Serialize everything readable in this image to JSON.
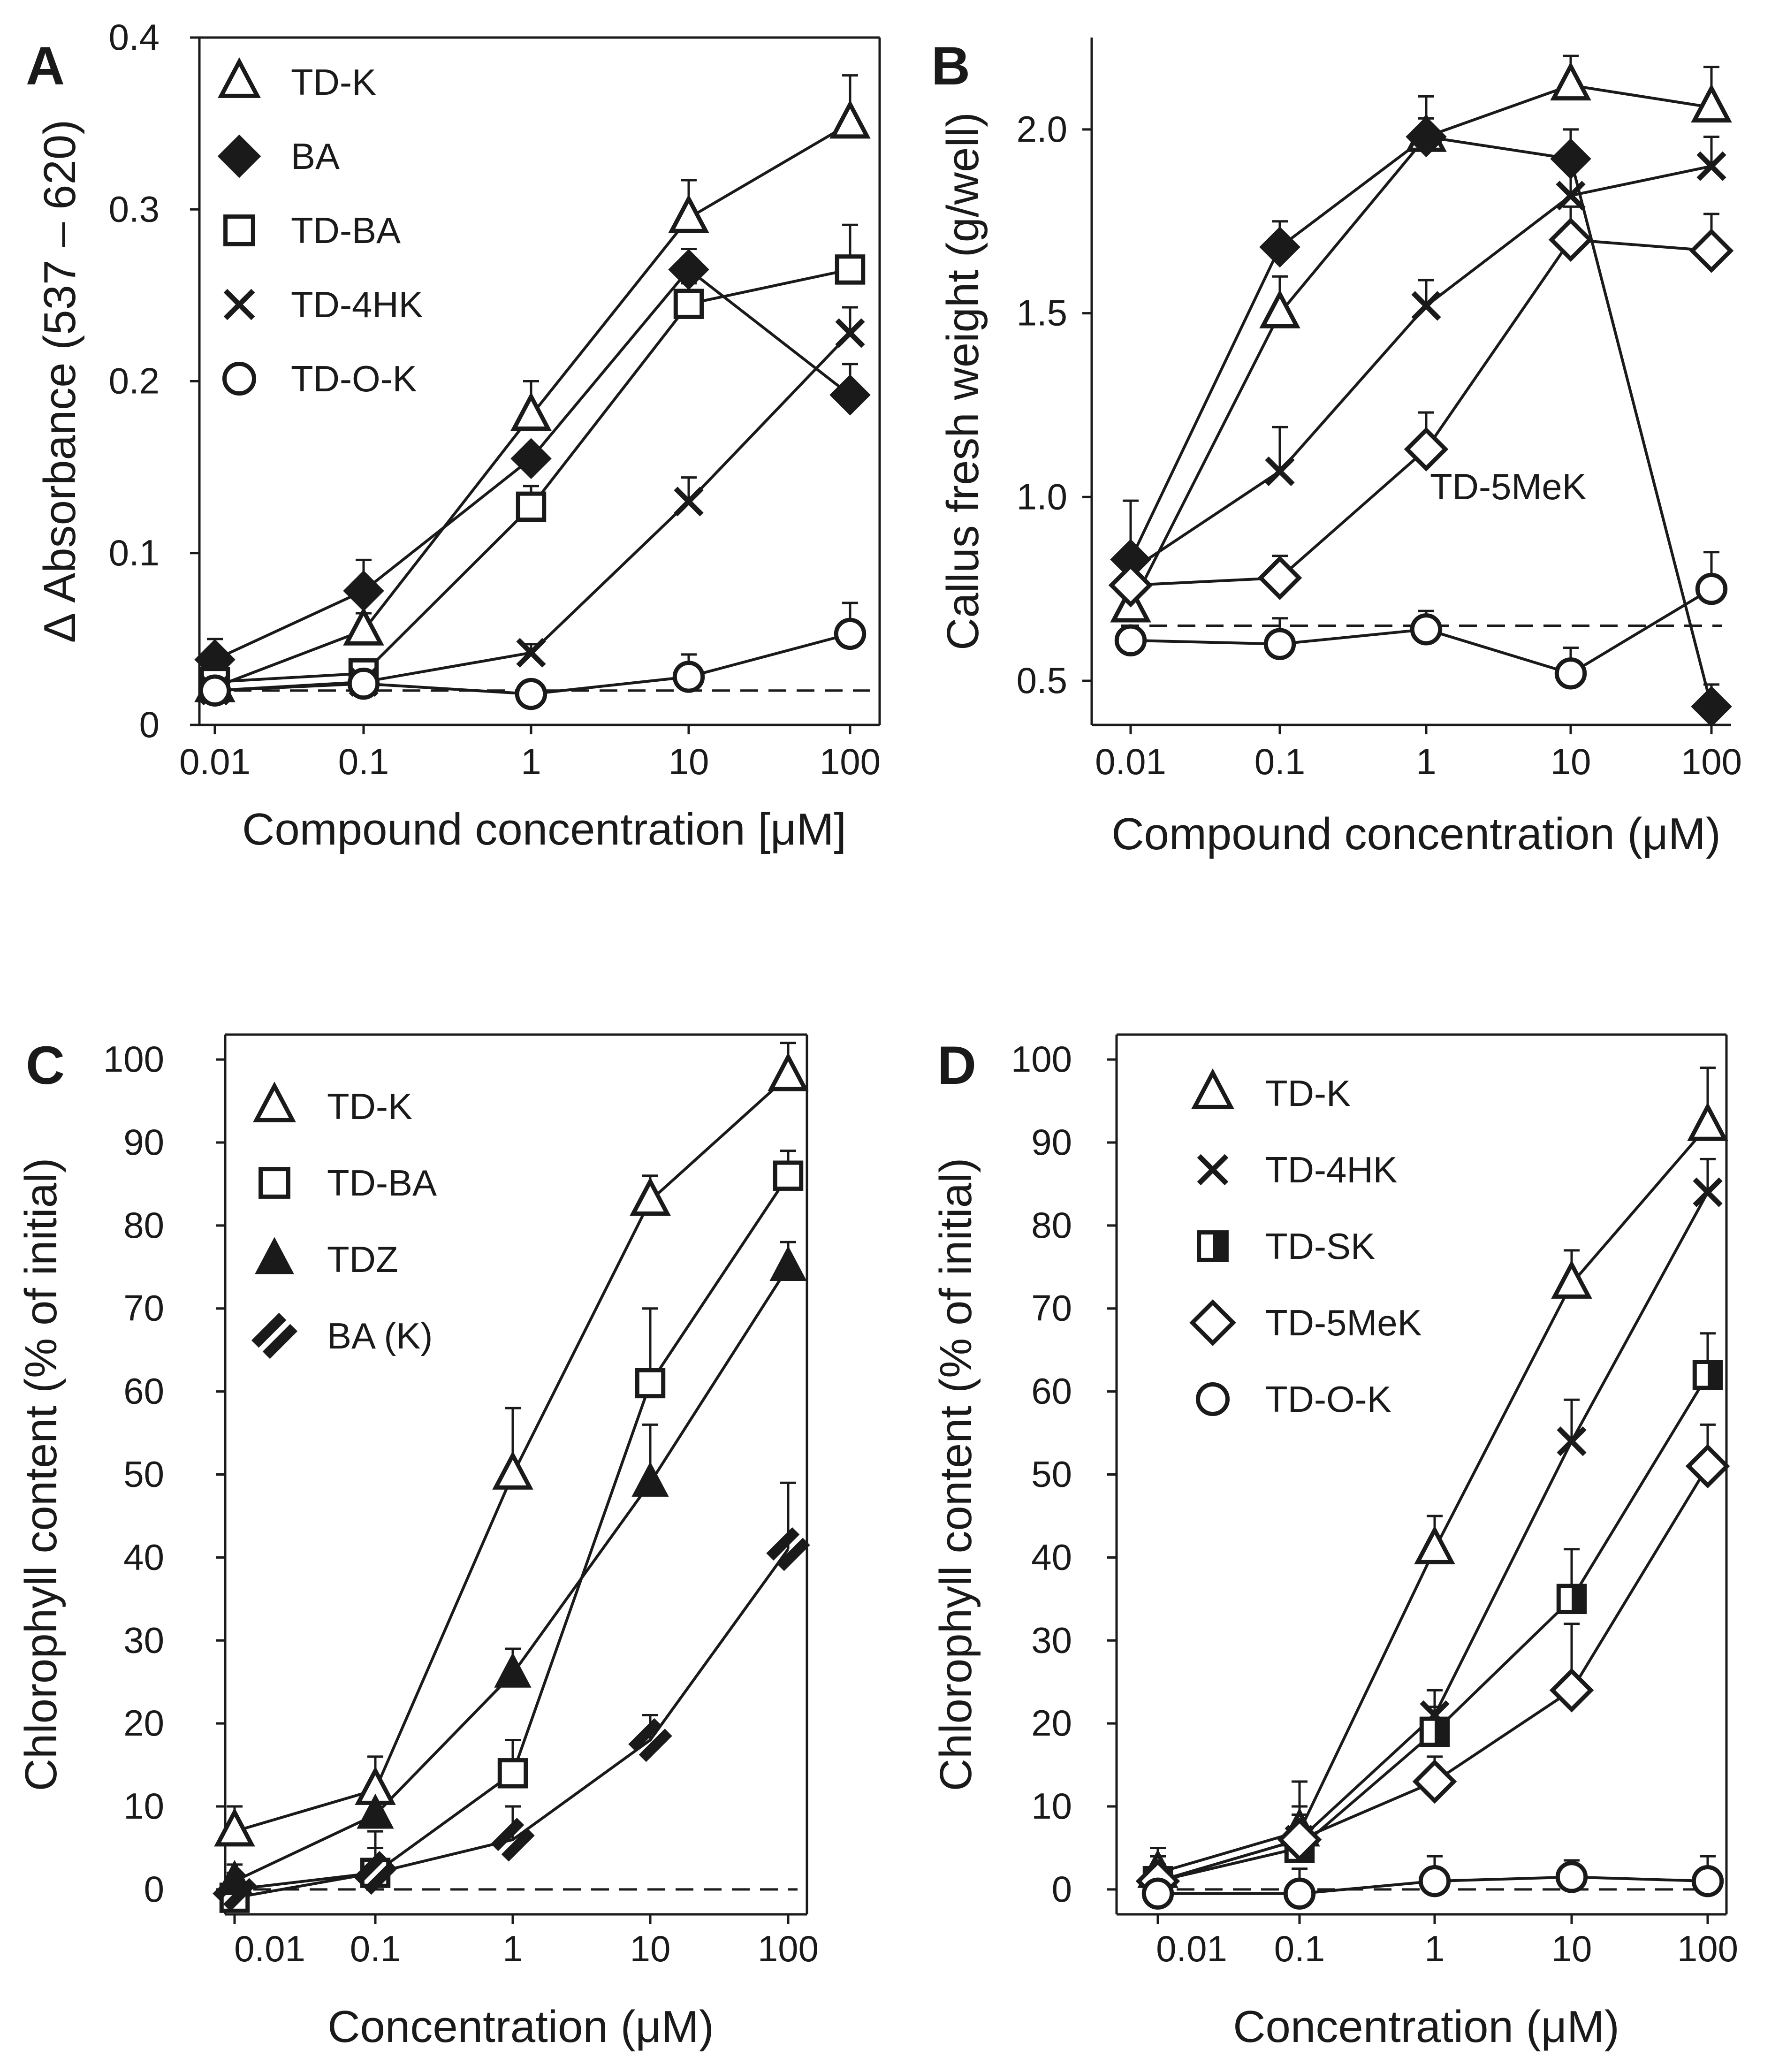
{
  "chart_data": [
    {
      "panel": "A",
      "type": "line",
      "xscale": "log",
      "x": [
        0.01,
        0.1,
        1,
        10,
        100
      ],
      "x_tick_labels": [
        "0.01",
        "0.1",
        "1",
        "10",
        "100"
      ],
      "xlabel": "Compound concentration [μM]",
      "ylabel": "Δ Absorbance (537 – 620)",
      "ylim": [
        0,
        0.4
      ],
      "y_ticks": [
        0,
        0.1,
        0.2,
        0.3,
        0.4
      ],
      "y_tick_labels": [
        "0",
        "0.1",
        "0.2",
        "0.3",
        "0.4"
      ],
      "baseline": 0.02,
      "legend_position": "top-left",
      "series": [
        {
          "name": "TD-K",
          "marker": "triangle-open",
          "values": [
            0.022,
            0.055,
            0.18,
            0.295,
            0.35
          ],
          "error": [
            0.008,
            0.01,
            0.02,
            0.022,
            0.028
          ]
        },
        {
          "name": "BA",
          "marker": "diamond-filled",
          "values": [
            0.038,
            0.078,
            0.155,
            0.265,
            0.192
          ],
          "error": [
            0.012,
            0.018,
            0.006,
            0.012,
            0.018
          ]
        },
        {
          "name": "TD-BA",
          "marker": "square-open",
          "values": [
            0.025,
            0.03,
            0.127,
            0.245,
            0.265
          ],
          "error": [
            0.005,
            0.008,
            0.012,
            0.012,
            0.026
          ]
        },
        {
          "name": "TD-4HK",
          "marker": "x",
          "values": [
            0.02,
            0.025,
            0.042,
            0.13,
            0.228
          ],
          "error": [
            0.004,
            0.004,
            0.005,
            0.014,
            0.015
          ]
        },
        {
          "name": "TD-O-K",
          "marker": "circle-open",
          "values": [
            0.02,
            0.024,
            0.018,
            0.028,
            0.053
          ],
          "error": [
            0.004,
            0.004,
            0.006,
            0.013,
            0.018
          ]
        }
      ]
    },
    {
      "panel": "B",
      "type": "line",
      "xscale": "log",
      "x": [
        0.01,
        0.1,
        1,
        10,
        100
      ],
      "x_tick_labels": [
        "0.01",
        "0.1",
        "1",
        "10",
        "100"
      ],
      "xlabel": "Compound concentration (μM)",
      "ylabel": "Callus fresh weight (g/well)",
      "ylim": [
        0.38,
        2.25
      ],
      "y_ticks": [
        0.5,
        1.0,
        1.5,
        2.0
      ],
      "y_tick_labels": [
        "0.5",
        "1.0",
        "1.5",
        "2.0"
      ],
      "baseline": 0.65,
      "annotation": "TD-5MeK",
      "series": [
        {
          "name": "TD-K",
          "marker": "triangle-open",
          "values": [
            0.7,
            1.5,
            1.98,
            2.12,
            2.06
          ],
          "error": [
            0.05,
            0.1,
            0.05,
            0.08,
            0.11
          ]
        },
        {
          "name": "BA",
          "marker": "diamond-filled",
          "values": [
            0.83,
            1.68,
            1.98,
            1.92,
            0.43
          ],
          "error": [
            0.16,
            0.07,
            0.11,
            0.08,
            0.06
          ]
        },
        {
          "name": "TD-4HK",
          "marker": "x",
          "values": [
            0.8,
            1.07,
            1.52,
            1.82,
            1.9
          ],
          "error": [
            0.05,
            0.12,
            0.07,
            0.08,
            0.08
          ]
        },
        {
          "name": "TD-5MeK",
          "marker": "diamond-open",
          "values": [
            0.76,
            0.78,
            1.13,
            1.7,
            1.67
          ],
          "error": [
            0.02,
            0.06,
            0.1,
            0.09,
            0.1
          ]
        },
        {
          "name": "TD-O-K",
          "marker": "circle-open",
          "values": [
            0.61,
            0.6,
            0.64,
            0.52,
            0.75
          ],
          "error": [
            0.02,
            0.07,
            0.05,
            0.07,
            0.1
          ]
        }
      ]
    },
    {
      "panel": "C",
      "type": "line",
      "xscale": "log",
      "x": [
        0.01,
        0.1,
        1,
        10,
        100
      ],
      "x_tick_labels": [
        "0.01",
        "0.1",
        "1",
        "10",
        "100"
      ],
      "xlabel": "Concentration (μM)",
      "ylabel": "Chlorophyll content (% of initial)",
      "ylim": [
        -3,
        103
      ],
      "y_ticks": [
        0,
        10,
        20,
        30,
        40,
        50,
        60,
        70,
        80,
        90,
        100
      ],
      "y_tick_labels": [
        "0",
        "10",
        "20",
        "30",
        "40",
        "50",
        "60",
        "70",
        "80",
        "90",
        "100"
      ],
      "baseline": 0,
      "legend_position": "top-left",
      "series": [
        {
          "name": "TD-K",
          "marker": "triangle-open",
          "values": [
            7,
            12,
            50,
            83,
            98
          ],
          "error": [
            3,
            4,
            8,
            3,
            4
          ]
        },
        {
          "name": "TD-BA",
          "marker": "square-open",
          "values": [
            -1,
            2,
            14,
            61,
            86
          ],
          "error": [
            3,
            3,
            4,
            9,
            3
          ]
        },
        {
          "name": "TDZ",
          "marker": "triangle-filled",
          "values": [
            1,
            9,
            26,
            49,
            75
          ],
          "error": [
            2,
            3,
            3,
            7,
            3
          ]
        },
        {
          "name": "BA (K)",
          "marker": "double-bar",
          "values": [
            0,
            2,
            6,
            18,
            41
          ],
          "error": [
            2,
            5,
            4,
            3,
            8
          ]
        }
      ]
    },
    {
      "panel": "D",
      "type": "line",
      "xscale": "log",
      "x": [
        0.01,
        0.1,
        1,
        10,
        100
      ],
      "x_tick_labels": [
        "0.01",
        "0.1",
        "1",
        "10",
        "100"
      ],
      "xlabel": "Concentration (μM)",
      "ylabel": "Chlorophyll content (% of initial)",
      "ylim": [
        -3,
        103
      ],
      "y_ticks": [
        0,
        10,
        20,
        30,
        40,
        50,
        60,
        70,
        80,
        90,
        100
      ],
      "y_tick_labels": [
        "0",
        "10",
        "20",
        "30",
        "40",
        "50",
        "60",
        "70",
        "80",
        "90",
        "100"
      ],
      "baseline": 0,
      "legend_position": "top-left",
      "series": [
        {
          "name": "TD-K",
          "marker": "triangle-open",
          "values": [
            2,
            7,
            41,
            73,
            92
          ],
          "error": [
            3,
            6,
            4,
            4,
            7
          ]
        },
        {
          "name": "TD-4HK",
          "marker": "x",
          "values": [
            1,
            6,
            21,
            54,
            84
          ],
          "error": [
            3,
            4,
            3,
            5,
            4
          ]
        },
        {
          "name": "TD-SK",
          "marker": "square-half",
          "values": [
            1,
            5,
            19,
            35,
            62
          ],
          "error": [
            3,
            4,
            3,
            6,
            5
          ]
        },
        {
          "name": "TD-5MeK",
          "marker": "diamond-open",
          "values": [
            1,
            6,
            13,
            24,
            51
          ],
          "error": [
            2,
            3,
            3,
            8,
            5
          ]
        },
        {
          "name": "TD-O-K",
          "marker": "circle-open",
          "values": [
            -0.5,
            -0.5,
            1,
            1.5,
            1
          ],
          "error": [
            3,
            3,
            3,
            2,
            3
          ]
        }
      ]
    }
  ]
}
